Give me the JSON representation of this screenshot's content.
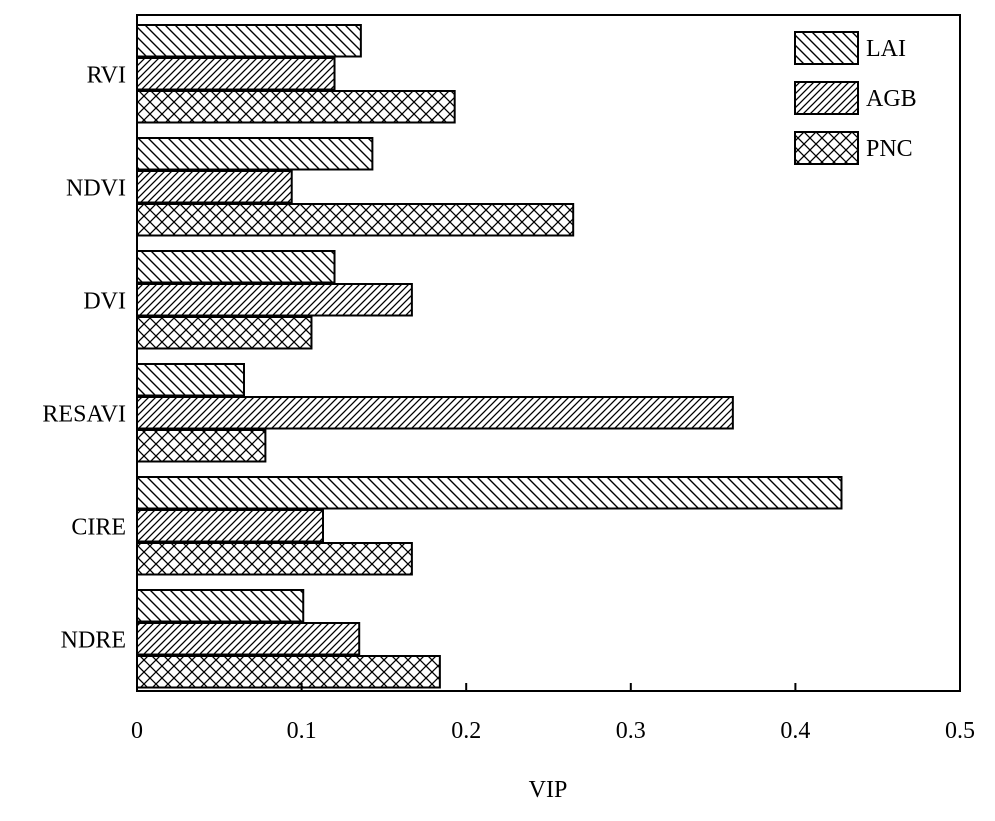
{
  "chart_data": {
    "type": "bar",
    "orientation": "horizontal",
    "categories": [
      "RVI",
      "NDVI",
      "DVI",
      "RESAVI",
      "CIRE",
      "NDRE"
    ],
    "series": [
      {
        "name": "LAI",
        "pattern": "diagonal-backslash",
        "values": [
          0.136,
          0.143,
          0.12,
          0.065,
          0.428,
          0.101
        ]
      },
      {
        "name": "AGB",
        "pattern": "diagonal-forward",
        "values": [
          0.12,
          0.094,
          0.167,
          0.362,
          0.113,
          0.135
        ]
      },
      {
        "name": "PNC",
        "pattern": "crosshatch",
        "values": [
          0.193,
          0.265,
          0.106,
          0.078,
          0.167,
          0.184
        ]
      }
    ],
    "xlabel": "VIP",
    "ylabel": "",
    "xlim": [
      0,
      0.5
    ],
    "xticks": [
      "0",
      "0.1",
      "0.2",
      "0.3",
      "0.4",
      "0.5"
    ],
    "grid": false,
    "legend_position": "top-right",
    "colors": {
      "fill": "#ffffff",
      "stroke": "#000000"
    }
  }
}
